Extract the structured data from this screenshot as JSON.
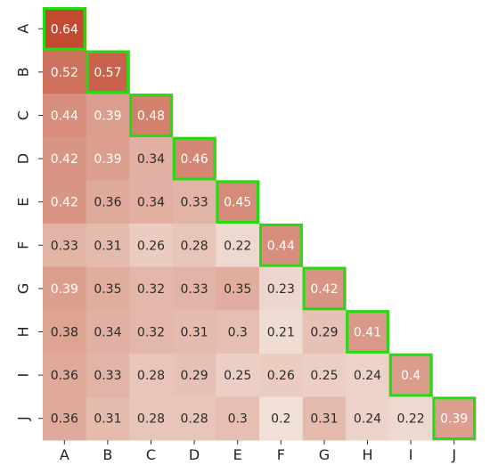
{
  "chart_data": {
    "type": "heatmap",
    "title": "",
    "xlabel": "",
    "ylabel": "",
    "lower_triangle_only": true,
    "diagonal_highlight": true,
    "highlight_color": "#22dd11",
    "colormap": {
      "low": "#f0e0d8",
      "high": "#c24a30"
    },
    "value_range": [
      0.2,
      0.64
    ],
    "rows": [
      "A",
      "B",
      "C",
      "D",
      "E",
      "F",
      "G",
      "H",
      "I",
      "J"
    ],
    "cols": [
      "A",
      "B",
      "C",
      "D",
      "E",
      "F",
      "G",
      "H",
      "I",
      "J"
    ],
    "values": [
      [
        0.64
      ],
      [
        0.52,
        0.57
      ],
      [
        0.44,
        0.39,
        0.48
      ],
      [
        0.42,
        0.39,
        0.34,
        0.46
      ],
      [
        0.42,
        0.36,
        0.34,
        0.33,
        0.45
      ],
      [
        0.33,
        0.31,
        0.26,
        0.28,
        0.22,
        0.44
      ],
      [
        0.39,
        0.35,
        0.32,
        0.33,
        0.35,
        0.23,
        0.42
      ],
      [
        0.38,
        0.34,
        0.32,
        0.31,
        0.3,
        0.21,
        0.29,
        0.41
      ],
      [
        0.36,
        0.33,
        0.28,
        0.29,
        0.25,
        0.26,
        0.25,
        0.24,
        0.4
      ],
      [
        0.36,
        0.31,
        0.28,
        0.28,
        0.3,
        0.2,
        0.31,
        0.24,
        0.22,
        0.39
      ]
    ]
  }
}
